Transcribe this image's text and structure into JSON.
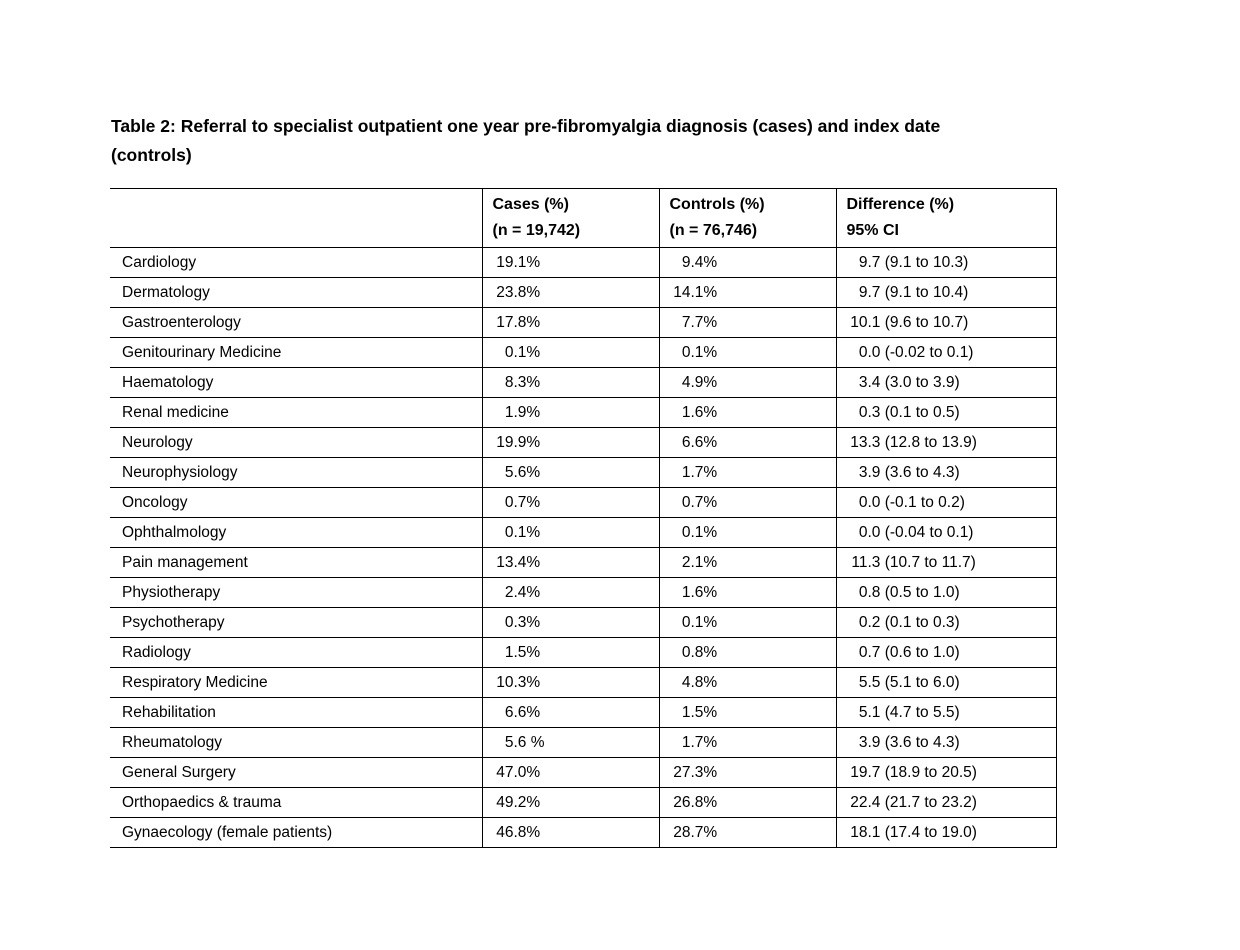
{
  "title": {
    "line1": "Table 2: Referral to specialist outpatient one year pre-fibromyalgia diagnosis (cases) and index date",
    "line2": "(controls)"
  },
  "colors": {
    "text": "#000000",
    "table_border": "#000000",
    "background": "#ffffff"
  },
  "table": {
    "headers": [
      {
        "line1": "",
        "line2": ""
      },
      {
        "line1": "Cases (%)",
        "line2": "(n = 19,742)"
      },
      {
        "line1": "Controls (%)",
        "line2": "(n = 76,746)"
      },
      {
        "line1": "Difference (%)",
        "line2": "95% CI"
      }
    ],
    "rows": [
      {
        "specialty": "Cardiology",
        "cases": "19.1%",
        "controls": "9.4%",
        "difference": "9.7 (9.1 to 10.3)"
      },
      {
        "specialty": "Dermatology",
        "cases": "23.8%",
        "controls": "14.1%",
        "difference": "9.7 (9.1 to 10.4)"
      },
      {
        "specialty": "Gastroenterology",
        "cases": "17.8%",
        "controls": "7.7%",
        "difference": "10.1 (9.6 to 10.7)"
      },
      {
        "specialty": "Genitourinary Medicine",
        "cases": "0.1%",
        "controls": "0.1%",
        "difference": "0.0 (-0.02 to 0.1)"
      },
      {
        "specialty": "Haematology",
        "cases": "8.3%",
        "controls": "4.9%",
        "difference": "3.4 (3.0 to 3.9)"
      },
      {
        "specialty": "Renal medicine",
        "cases": "1.9%",
        "controls": "1.6%",
        "difference": "0.3 (0.1 to 0.5)"
      },
      {
        "specialty": "Neurology",
        "cases": "19.9%",
        "controls": "6.6%",
        "difference": "13.3 (12.8 to 13.9)"
      },
      {
        "specialty": "Neurophysiology",
        "cases": "5.6%",
        "controls": "1.7%",
        "difference": "3.9 (3.6 to 4.3)"
      },
      {
        "specialty": "Oncology",
        "cases": "0.7%",
        "controls": "0.7%",
        "difference": "0.0 (-0.1 to 0.2)"
      },
      {
        "specialty": "Ophthalmology",
        "cases": "0.1%",
        "controls": "0.1%",
        "difference": "0.0 (-0.04 to 0.1)"
      },
      {
        "specialty": "Pain management",
        "cases": "13.4%",
        "controls": "2.1%",
        "difference": "11.3 (10.7 to 11.7)"
      },
      {
        "specialty": "Physiotherapy",
        "cases": "2.4%",
        "controls": "1.6%",
        "difference": "0.8 (0.5 to 1.0)"
      },
      {
        "specialty": "Psychotherapy",
        "cases": "0.3%",
        "controls": "0.1%",
        "difference": "0.2 (0.1 to 0.3)"
      },
      {
        "specialty": "Radiology",
        "cases": "1.5%",
        "controls": "0.8%",
        "difference": "0.7 (0.6 to 1.0)"
      },
      {
        "specialty": "Respiratory Medicine",
        "cases": "10.3%",
        "controls": "4.8%",
        "difference": "5.5 (5.1 to 6.0)"
      },
      {
        "specialty": "Rehabilitation",
        "cases": "6.6%",
        "controls": "1.5%",
        "difference": "5.1 (4.7 to 5.5)"
      },
      {
        "specialty": "Rheumatology",
        "cases": "5.6 %",
        "controls": "1.7%",
        "difference": "3.9 (3.6 to 4.3)"
      },
      {
        "specialty": "General Surgery",
        "cases": "47.0%",
        "controls": "27.3%",
        "difference": "19.7 (18.9 to 20.5)"
      },
      {
        "specialty": "Orthopaedics & trauma",
        "cases": "49.2%",
        "controls": "26.8%",
        "difference": "22.4 (21.7 to 23.2)"
      },
      {
        "specialty": "Gynaecology (female patients)",
        "cases": "46.8%",
        "controls": "28.7%",
        "difference": "18.1 (17.4 to 19.0)"
      }
    ]
  }
}
